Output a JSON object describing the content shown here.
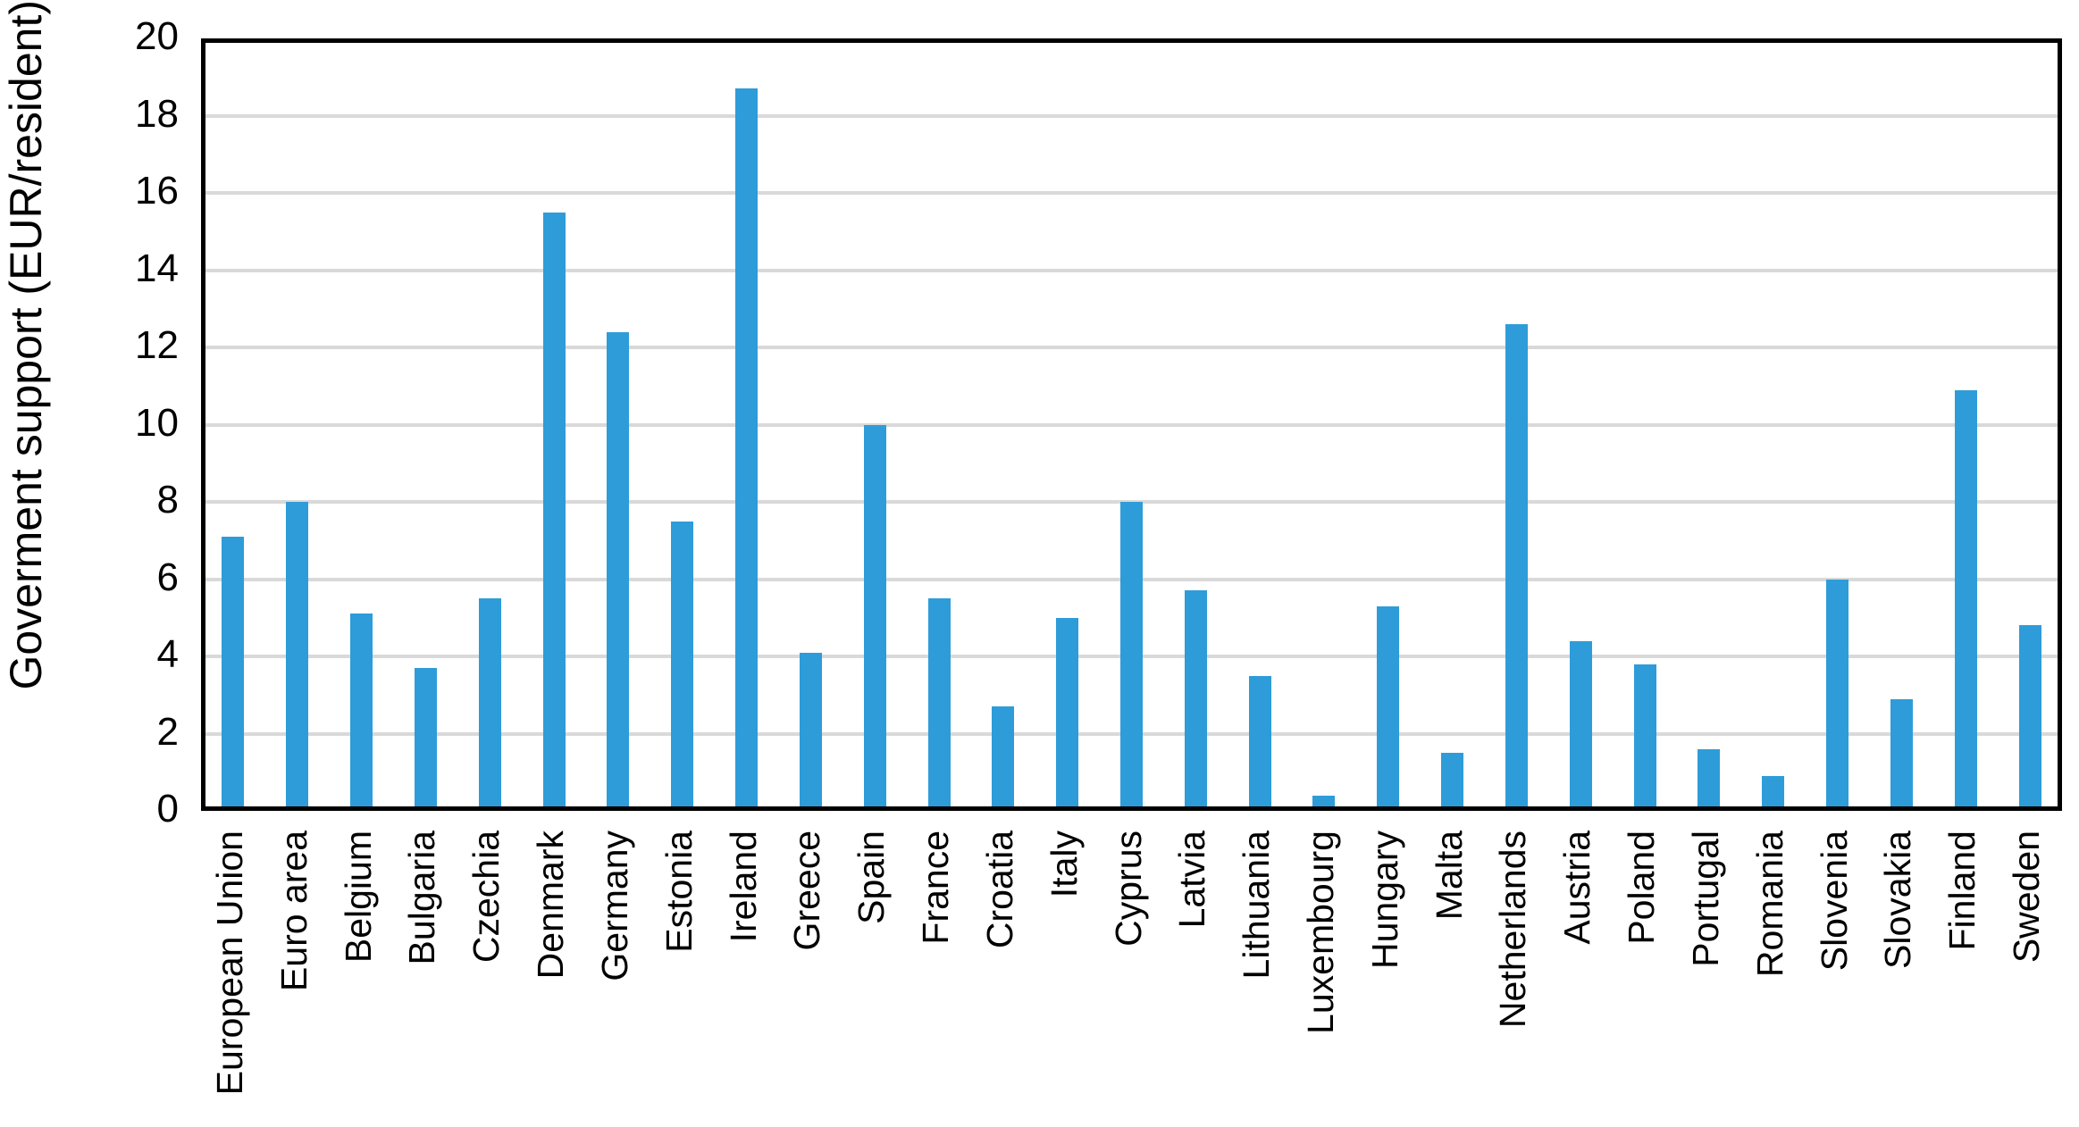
{
  "chart_data": {
    "type": "bar",
    "title": "",
    "xlabel": "",
    "ylabel": "Goverment support (EUR/resident)",
    "ylim": [
      0,
      20
    ],
    "ytick_step": 2,
    "grid": true,
    "legend": "none",
    "bar_color": "#2e9cd9",
    "gridline_color": "#d9d9d9",
    "axis_color": "#000000",
    "categories": [
      "European Union",
      "Euro area",
      "Belgium",
      "Bulgaria",
      "Czechia",
      "Denmark",
      "Germany",
      "Estonia",
      "Ireland",
      "Greece",
      "Spain",
      "France",
      "Croatia",
      "Italy",
      "Cyprus",
      "Latvia",
      "Lithuania",
      "Luxembourg",
      "Hungary",
      "Malta",
      "Netherlands",
      "Austria",
      "Poland",
      "Portugal",
      "Romania",
      "Slovenia",
      "Slovakia",
      "Finland",
      "Sweden"
    ],
    "values": [
      7.1,
      8.0,
      5.1,
      3.7,
      5.5,
      15.5,
      12.4,
      7.5,
      18.7,
      4.1,
      10.0,
      5.5,
      2.7,
      5.0,
      8.0,
      5.7,
      3.5,
      0.4,
      5.3,
      1.5,
      12.6,
      4.4,
      3.8,
      1.6,
      0.9,
      6.0,
      2.9,
      10.9,
      4.8
    ]
  }
}
